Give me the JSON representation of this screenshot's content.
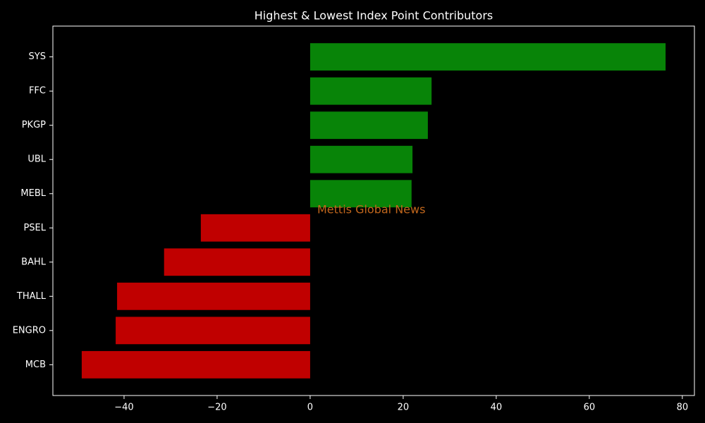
{
  "chart_data": {
    "type": "barh",
    "title": "Highest & Lowest Index Point Contributors",
    "categories": [
      "SYS",
      "FFC",
      "PKGP",
      "UBL",
      "MEBL",
      "PSEL",
      "BAHL",
      "THALL",
      "ENGRO",
      "MCB"
    ],
    "values": [
      76.4,
      26.1,
      25.3,
      22.0,
      21.8,
      -23.5,
      -31.4,
      -41.5,
      -41.8,
      -49.1
    ],
    "colors": [
      "#088408",
      "#088408",
      "#088408",
      "#088408",
      "#088408",
      "#c00000",
      "#c00000",
      "#c00000",
      "#c00000",
      "#c00000"
    ],
    "xlim": [
      -55.3,
      82.6
    ],
    "xticks": [
      {
        "value": -40,
        "label": "−40"
      },
      {
        "value": -20,
        "label": "−20"
      },
      0,
      20,
      40,
      60,
      80
    ],
    "annotation": "Mettis Global News"
  }
}
